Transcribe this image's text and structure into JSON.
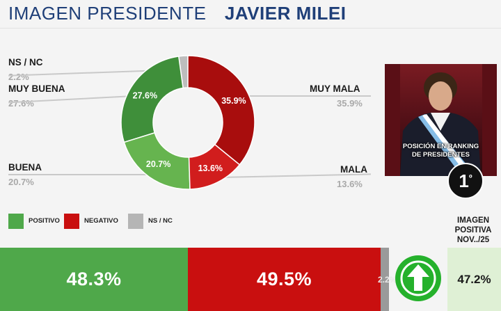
{
  "header": {
    "title": "IMAGEN PRESIDENTE",
    "name": "JAVIER MILEI"
  },
  "chart_data": [
    {
      "type": "pie",
      "variant": "donut",
      "categories": [
        "NS / NC",
        "MUY BUENA",
        "BUENA",
        "MALA",
        "MUY MALA"
      ],
      "values": [
        2.2,
        27.6,
        20.7,
        13.6,
        35.9
      ],
      "labels": [
        "2.2%",
        "27.6%",
        "20.7%",
        "13.6%",
        "35.9%"
      ],
      "slice_labels": [
        "",
        "27.6%",
        "20.7%",
        "13.6%",
        "35.9%"
      ],
      "colors": [
        "#bdbdbd",
        "#3f8f3a",
        "#66b44f",
        "#d11d1d",
        "#a80d0d"
      ]
    },
    {
      "type": "bar",
      "orientation": "horizontal-stacked",
      "categories": [
        "POSITIVO",
        "NEGATIVO",
        "NS / NC"
      ],
      "values": [
        48.3,
        49.5,
        2.2
      ],
      "labels": [
        "48.3%",
        "49.5%",
        "2.2%"
      ],
      "colors": [
        "#4fa84a",
        "#c90f0f",
        "#9a9a9a"
      ],
      "legend": "bottom-left"
    }
  ],
  "photo": {
    "caption_line1": "POSICIÓN EN RANKING",
    "caption_line2": "DE PRESIDENTES",
    "rank": "1",
    "rank_suffix": "º"
  },
  "imagen_positiva": {
    "header_line1": "IMAGEN",
    "header_line2": "POSITIVA",
    "header_line3": "NOV../25",
    "value": "47.2%",
    "trend_icon": "up-arrow-icon"
  }
}
